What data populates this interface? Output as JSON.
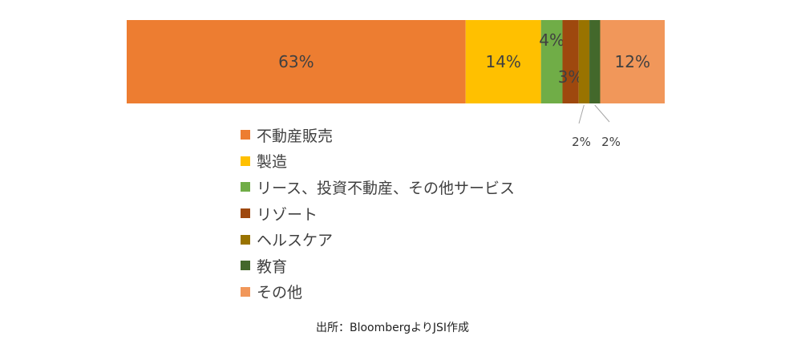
{
  "chart_data": {
    "type": "bar",
    "orientation": "horizontal-stacked-100",
    "unit": "%",
    "series": [
      {
        "name": "不動産販売",
        "value": 63,
        "label": "63%",
        "color": "#ED7D31"
      },
      {
        "name": "製造",
        "value": 14,
        "label": "14%",
        "color": "#FFC000"
      },
      {
        "name": "リース、投資不動産、その他サービス",
        "value": 4,
        "label": "4%",
        "color": "#70AD47"
      },
      {
        "name": "リゾート",
        "value": 3,
        "label": "3%",
        "color": "#9E480E"
      },
      {
        "name": "ヘルスケア",
        "value": 2,
        "label": "2%",
        "color": "#997300"
      },
      {
        "name": "教育",
        "value": 2,
        "label": "2%",
        "color": "#43682B"
      },
      {
        "name": "その他",
        "value": 12,
        "label": "12%",
        "color": "#F1975A"
      }
    ],
    "legend_position": "bottom-center",
    "grid": false
  },
  "source": "出所：BloombergよりJSI作成"
}
